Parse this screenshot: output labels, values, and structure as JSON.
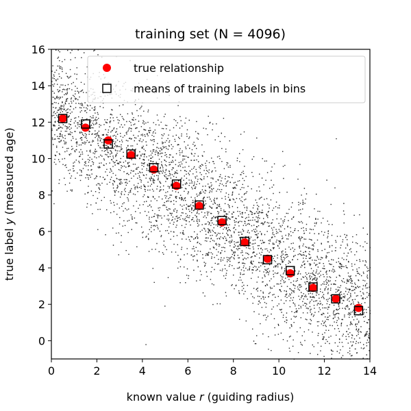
{
  "chart_data": {
    "type": "scatter",
    "title": "training set (N = 4096)",
    "xlabel": "known value r (guiding radius)",
    "ylabel": "true label y (measured age)",
    "xlim": [
      0,
      14
    ],
    "ylim": [
      -1,
      16
    ],
    "xticks": [
      0,
      2,
      4,
      6,
      8,
      10,
      12,
      14
    ],
    "yticks": [
      0,
      2,
      4,
      6,
      8,
      10,
      12,
      14,
      16
    ],
    "grid": false,
    "legend_position": "top-right",
    "scatter_cloud": {
      "n_points": 4096,
      "color": "#000000",
      "description_model": {
        "intercept": 12.8,
        "slope": -0.82,
        "noise_sd": 2.0
      }
    },
    "series": [
      {
        "name": "true relationship",
        "marker": "circle",
        "color": "#ff0000",
        "x": [
          0.5,
          1.5,
          2.5,
          3.5,
          4.5,
          5.5,
          6.5,
          7.5,
          8.5,
          9.5,
          10.5,
          11.5,
          12.5,
          13.5
        ],
        "y": [
          12.2,
          11.7,
          11.0,
          10.2,
          9.4,
          8.5,
          7.4,
          6.5,
          5.4,
          4.5,
          3.7,
          2.9,
          2.3,
          1.8
        ]
      },
      {
        "name": "means of training labels in bins",
        "marker": "square",
        "color": "#000000",
        "x": [
          0.5,
          1.5,
          2.5,
          3.5,
          4.5,
          5.5,
          6.5,
          7.5,
          8.5,
          9.5,
          10.5,
          11.5,
          12.5,
          13.5
        ],
        "y": [
          12.2,
          11.9,
          10.8,
          10.25,
          9.5,
          8.6,
          7.45,
          6.6,
          5.45,
          4.45,
          3.85,
          2.95,
          2.3,
          1.65
        ]
      }
    ]
  }
}
